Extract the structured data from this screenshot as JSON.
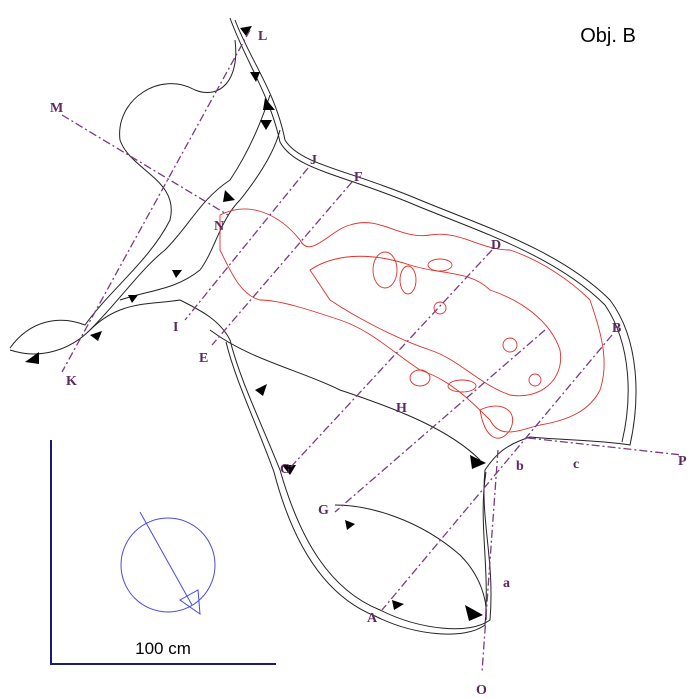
{
  "title": "Obj. B",
  "scale_label": "100 cm",
  "points": [
    "L",
    "M",
    "J",
    "F",
    "N",
    "D",
    "B",
    "I",
    "E",
    "K",
    "H",
    "C",
    "G",
    "A",
    "b",
    "c",
    "P",
    "a",
    "O"
  ]
}
